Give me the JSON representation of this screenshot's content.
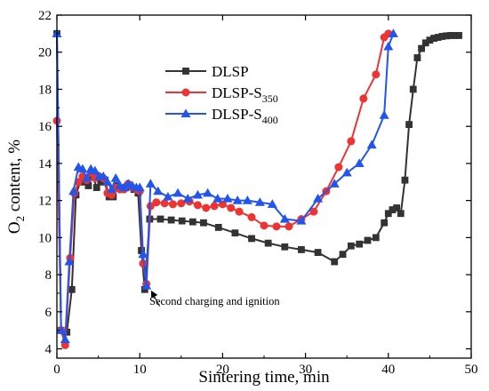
{
  "chart_data": {
    "type": "line",
    "xlabel": "Sintering time, min",
    "ylabel_main": "O",
    "ylabel_sub": "2",
    "ylabel_rest": " content, %",
    "xlim": [
      0,
      50
    ],
    "ylim": [
      3.5,
      22
    ],
    "xticks": [
      0,
      10,
      20,
      30,
      40,
      50
    ],
    "yticks": [
      4,
      6,
      8,
      10,
      12,
      14,
      16,
      18,
      20,
      22
    ],
    "grid": false,
    "legend_position": "upper-left",
    "series": [
      {
        "name": "DLSP",
        "name_main": "DLSP",
        "name_sub": "",
        "color": "#333333",
        "marker": "square",
        "x": [
          0,
          0.5,
          1.2,
          1.8,
          2.3,
          2.8,
          3.3,
          3.8,
          4.3,
          4.8,
          5.3,
          5.8,
          6.3,
          6.8,
          7.3,
          7.8,
          8.3,
          8.8,
          9.3,
          9.8,
          10.2,
          10.6,
          11.2,
          12.5,
          13.8,
          15.1,
          16.4,
          17.7,
          19.5,
          21.5,
          23.5,
          25.5,
          27.5,
          29.5,
          31.5,
          33.5,
          34.5,
          35.5,
          36.5,
          37.5,
          38.5,
          39.5,
          40.0,
          40.5,
          41.0,
          41.5,
          42.0,
          42.5,
          43.0,
          43.5,
          44.0,
          44.5,
          45.0,
          45.5,
          46.0,
          46.5,
          47.0,
          47.5,
          48.0,
          48.5
        ],
        "y": [
          21.0,
          5.0,
          4.9,
          7.2,
          12.3,
          13.0,
          13.0,
          12.8,
          13.4,
          12.7,
          13.0,
          13.1,
          12.2,
          12.2,
          12.8,
          12.6,
          12.7,
          12.8,
          12.6,
          12.4,
          9.3,
          7.2,
          11.0,
          11.0,
          10.95,
          10.9,
          10.85,
          10.8,
          10.55,
          10.25,
          9.95,
          9.7,
          9.5,
          9.35,
          9.2,
          8.7,
          9.1,
          9.55,
          9.65,
          9.85,
          10.0,
          10.8,
          11.3,
          11.5,
          11.6,
          11.3,
          13.1,
          16.1,
          18.0,
          19.7,
          20.2,
          20.5,
          20.65,
          20.75,
          20.8,
          20.85,
          20.88,
          20.9,
          20.9,
          20.9
        ]
      },
      {
        "name": "DLSP-S350",
        "name_main": "DLSP-S",
        "name_sub": "350",
        "color": "#ee3333",
        "marker": "circle",
        "x": [
          0,
          0.5,
          1.0,
          1.6,
          2.1,
          2.6,
          3.1,
          3.6,
          4.1,
          4.6,
          5.1,
          5.6,
          6.1,
          6.6,
          7.1,
          7.6,
          8.1,
          8.6,
          9.1,
          9.6,
          10.0,
          10.4,
          10.8,
          11.3,
          12.0,
          13.0,
          14.0,
          15.0,
          16.0,
          17.0,
          18.0,
          19.0,
          20.0,
          21.0,
          22.0,
          23.5,
          25.0,
          26.5,
          28.0,
          29.5,
          31.0,
          32.5,
          34.0,
          35.5,
          37.0,
          38.5,
          39.5,
          40.0
        ],
        "y": [
          16.3,
          5.0,
          4.2,
          8.9,
          12.4,
          13.0,
          13.3,
          13.1,
          13.5,
          13.2,
          13.3,
          13.2,
          12.4,
          12.3,
          12.7,
          12.6,
          12.6,
          12.9,
          12.7,
          12.6,
          12.5,
          8.6,
          7.5,
          11.7,
          11.9,
          11.85,
          11.8,
          11.85,
          11.95,
          11.75,
          11.6,
          11.7,
          11.8,
          11.6,
          11.4,
          11.1,
          10.65,
          10.6,
          10.6,
          11.0,
          11.4,
          12.5,
          13.8,
          15.2,
          17.5,
          18.8,
          20.8,
          21.0
        ]
      },
      {
        "name": "DLSP-S400",
        "name_main": "DLSP-S",
        "name_sub": "400",
        "color": "#2255ee",
        "marker": "triangle",
        "x": [
          0,
          0.5,
          1.0,
          1.5,
          2.0,
          2.6,
          3.1,
          3.6,
          4.1,
          4.6,
          5.1,
          5.6,
          6.1,
          6.6,
          7.1,
          7.6,
          8.1,
          8.6,
          9.1,
          9.6,
          10.0,
          10.4,
          10.8,
          11.3,
          12.2,
          13.4,
          14.6,
          15.8,
          17.0,
          18.2,
          19.4,
          20.6,
          21.8,
          23.0,
          24.5,
          26.0,
          27.5,
          29.5,
          31.5,
          33.5,
          35.0,
          36.5,
          38.0,
          39.5,
          40.0,
          40.6
        ],
        "y": [
          21.0,
          5.0,
          4.5,
          8.7,
          12.5,
          13.8,
          13.7,
          13.2,
          13.7,
          13.6,
          13.3,
          13.3,
          13.0,
          12.6,
          13.2,
          12.8,
          12.7,
          12.9,
          12.8,
          12.7,
          12.7,
          9.1,
          7.4,
          12.9,
          12.5,
          12.2,
          12.4,
          12.1,
          12.3,
          12.4,
          12.1,
          12.1,
          12.0,
          12.0,
          11.9,
          11.8,
          11.0,
          10.9,
          12.1,
          12.9,
          13.5,
          14.0,
          15.0,
          16.6,
          20.3,
          21.0
        ]
      }
    ],
    "annotation": {
      "text": "Second charging and ignition",
      "arrow_tip": [
        11.2,
        7.3
      ],
      "arrow_tail": [
        12.4,
        6.3
      ]
    }
  }
}
